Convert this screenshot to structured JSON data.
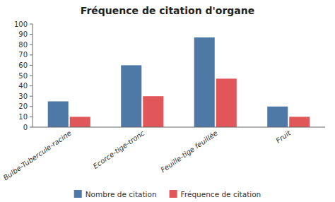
{
  "chart_data": {
    "type": "bar",
    "title": "Fréquence de citation d'organe",
    "categories": [
      "Bulbe-Tubercule-racine",
      "Ecorce-tige-tronc",
      "Feuille-tige feuillée",
      "Fruit"
    ],
    "series": [
      {
        "name": "Nombre de citation",
        "color": "#4e79a7",
        "values": [
          25,
          60,
          87,
          20
        ]
      },
      {
        "name": "Fréquence de citation",
        "color": "#e15759",
        "values": [
          10,
          30,
          47,
          10
        ]
      }
    ],
    "ylim": [
      0,
      100
    ],
    "yticks": [
      0,
      10,
      20,
      30,
      40,
      50,
      60,
      70,
      80,
      90,
      100
    ],
    "grid": false,
    "legend": "bottom"
  }
}
